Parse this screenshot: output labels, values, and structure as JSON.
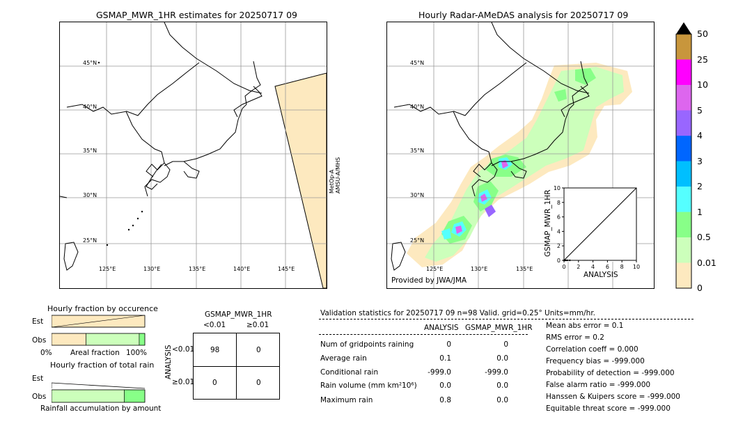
{
  "left_map": {
    "title": "GSMAP_MWR_1HR estimates for 20250717 09",
    "lat_labels": [
      "45°N",
      "40°N",
      "35°N",
      "30°N",
      "25°N"
    ],
    "lon_labels": [
      "125°E",
      "130°E",
      "135°E",
      "140°E",
      "145°E"
    ],
    "satellite_label_1": "MetOp-A",
    "satellite_label_2": "AMSU-A/MHS"
  },
  "right_map": {
    "title": "Hourly Radar-AMeDAS analysis for 20250717 09",
    "lat_labels": [
      "45°N",
      "40°N",
      "35°N",
      "30°N",
      "25°N"
    ],
    "lon_labels": [
      "125°E",
      "130°E",
      "135°E"
    ],
    "credit": "Provided by JWA/JMA"
  },
  "colorbar": {
    "labels": [
      "50",
      "25",
      "10",
      "5",
      "4",
      "3",
      "2",
      "1",
      "0.5",
      "0.01",
      "0"
    ],
    "colors": [
      "#c8963c",
      "#ff00ff",
      "#dd66ee",
      "#9966ff",
      "#0066ff",
      "#00bfff",
      "#55ffff",
      "#88ff88",
      "#ccffbb",
      "#fde9bf"
    ]
  },
  "chart_data": [
    {
      "type": "scatter",
      "title": "",
      "xlabel": "ANALYSIS",
      "ylabel": "GSMAP_MWR_1HR",
      "xlim": [
        0,
        10
      ],
      "ylim": [
        0,
        10
      ],
      "xticks": [
        "0",
        "2",
        "4",
        "6",
        "8",
        "10"
      ],
      "yticks": [
        "0",
        "2",
        "4",
        "6",
        "8",
        "10"
      ],
      "points": [
        [
          0.0,
          0.0
        ],
        [
          0.1,
          0.0
        ],
        [
          0.2,
          0.0
        ],
        [
          0.3,
          0.0
        ],
        [
          0.5,
          0.0
        ],
        [
          0.8,
          0.0
        ]
      ]
    },
    {
      "type": "bar",
      "title": "Hourly fraction by occurence",
      "categories": [
        "Est",
        "Obs"
      ],
      "xlabel": "Areal fraction",
      "x_ticks": [
        "0%",
        "100%"
      ],
      "series": [
        {
          "values": [
            1.0,
            0.37
          ]
        },
        {
          "values": [
            0.0,
            0.57
          ]
        },
        {
          "values": [
            0.0,
            0.06
          ]
        }
      ]
    },
    {
      "type": "bar",
      "title": "Hourly fraction of total rain",
      "categories": [
        "Est",
        "Obs"
      ],
      "xlabel": "Rainfall accumulation by amount",
      "series": [
        {
          "values": [
            0.0,
            0.78
          ]
        },
        {
          "values": [
            0.0,
            0.22
          ]
        }
      ]
    }
  ],
  "contingency": {
    "title": "GSMAP_MWR_1HR",
    "col_headers": [
      "<0.01",
      "≥0.01"
    ],
    "row_axis": "ANALYSIS",
    "row_headers": [
      "<0.01",
      "≥0.01"
    ],
    "cells": [
      [
        "98",
        "0"
      ],
      [
        "0",
        "0"
      ]
    ]
  },
  "validation": {
    "header": "Validation statistics for 20250717 09  n=98 Valid. grid=0.25° Units=mm/hr.",
    "col_analysis": "ANALYSIS",
    "col_gsmap": "GSMAP_MWR_1HR",
    "rows": [
      {
        "label": "Num of gridpoints raining",
        "a": "0",
        "g": "0"
      },
      {
        "label": "Average rain",
        "a": "0.1",
        "g": "0.0"
      },
      {
        "label": "Conditional rain",
        "a": "-999.0",
        "g": "-999.0"
      },
      {
        "label": "Rain volume (mm km²10⁶)",
        "a": "0.0",
        "g": "0.0"
      },
      {
        "label": "Maximum rain",
        "a": "0.8",
        "g": "0.0"
      }
    ],
    "scores": [
      "Mean abs error =    0.1",
      "RMS error =    0.2",
      "Correlation coeff =  0.000",
      "Frequency bias = -999.000",
      "Probability of detection = -999.000",
      "False alarm ratio = -999.000",
      "Hanssen & Kuipers score = -999.000",
      "Equitable threat score = -999.000"
    ]
  }
}
